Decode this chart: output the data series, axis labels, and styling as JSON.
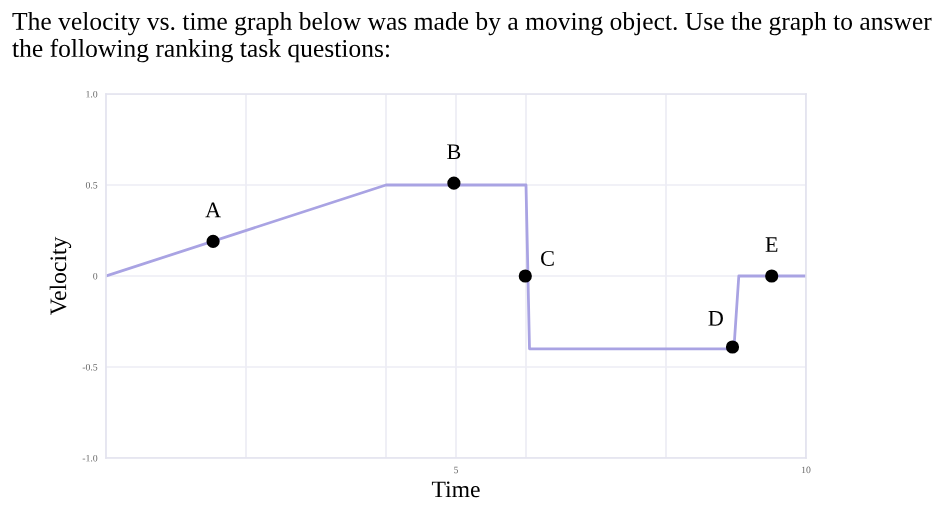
{
  "chart_data": {
    "type": "line",
    "title": "The velocity vs. time graph below was made by a moving object. Use the graph to answer the following ranking task questions:",
    "xlabel": "Time",
    "ylabel": "Velocity",
    "series": [
      {
        "color": "#a9a3e3",
        "x": [
          0,
          4,
          6,
          6.05,
          8.97,
          9.04,
          10
        ],
        "values": [
          0,
          0.5,
          0.5,
          -0.4,
          -0.4,
          0,
          0
        ]
      },
      {
        "type": "scatter",
        "marker": "circle",
        "color": "#000000",
        "x": [
          1.53,
          4.97,
          5.99,
          8.95,
          9.51
        ],
        "values": [
          0.19,
          0.51,
          0,
          -0.39,
          0
        ]
      }
    ],
    "annotations": [
      {
        "text": "A",
        "x": 1.53,
        "y": 0.19
      },
      {
        "text": "B",
        "x": 4.97,
        "y": 0.51
      },
      {
        "text": "C",
        "x": 5.99,
        "y": 0
      },
      {
        "text": "D",
        "x": 8.95,
        "y": -0.39
      },
      {
        "text": "E",
        "x": 9.51,
        "y": 0
      }
    ],
    "xlim": [
      0,
      10
    ],
    "ylim": [
      -1.0,
      1.0
    ],
    "xticks": [
      {
        "value": 2,
        "label": null
      },
      {
        "value": 4,
        "label": null
      },
      5,
      {
        "value": 6,
        "label": null
      },
      {
        "value": 8,
        "label": null
      },
      10
    ],
    "yticks": [
      {
        "value": -1.0,
        "label": "-1.0"
      },
      {
        "value": -0.5,
        "label": "-0.5"
      },
      0,
      {
        "value": 0.5,
        "label": "0.5"
      },
      {
        "value": 1.0,
        "label": "1.0"
      }
    ],
    "grid": true
  }
}
